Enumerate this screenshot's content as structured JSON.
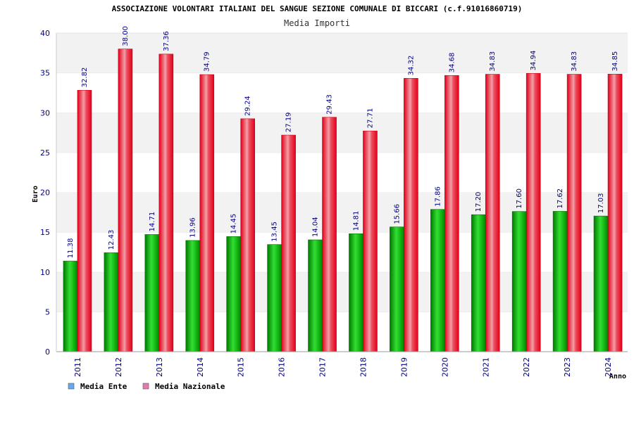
{
  "chart_data": {
    "type": "bar",
    "title": "ASSOCIAZIONE VOLONTARI ITALIANI DEL SANGUE SEZIONE COMUNALE DI BICCARI (c.f.91016860719)",
    "subtitle": "Media Importi",
    "xlabel": "Anno",
    "ylabel": "Euro",
    "ylim": [
      0,
      40
    ],
    "yticks": [
      0,
      5,
      10,
      15,
      20,
      25,
      30,
      35,
      40
    ],
    "grid": true,
    "categories": [
      "2011",
      "2012",
      "2013",
      "2014",
      "2015",
      "2016",
      "2017",
      "2018",
      "2019",
      "2020",
      "2021",
      "2022",
      "2023",
      "2024"
    ],
    "series": [
      {
        "name": "Media Ente",
        "color": "#22bb22",
        "legend_color": "#66aaee",
        "values": [
          11.38,
          12.43,
          14.71,
          13.96,
          14.45,
          13.45,
          14.04,
          14.81,
          15.66,
          17.86,
          17.2,
          17.6,
          17.62,
          17.03
        ],
        "labels": [
          "11.38",
          "12.43",
          "14.71",
          "13.96",
          "14.45",
          "13.45",
          "14.04",
          "14.81",
          "15.66",
          "17.86",
          "17.20",
          "17.60",
          "17.62",
          "17.03"
        ]
      },
      {
        "name": "Media Nazionale",
        "color": "#ee1122",
        "legend_color": "#e57ab0",
        "values": [
          32.82,
          38.0,
          37.36,
          34.79,
          29.24,
          27.19,
          29.43,
          27.71,
          34.32,
          34.68,
          34.83,
          34.94,
          34.83,
          34.85
        ],
        "labels": [
          "32.82",
          "38.00",
          "37.36",
          "34.79",
          "29.24",
          "27.19",
          "29.43",
          "27.71",
          "34.32",
          "34.68",
          "34.83",
          "34.94",
          "34.83",
          "34.85"
        ]
      }
    ],
    "legend_position": "bottom-left"
  }
}
